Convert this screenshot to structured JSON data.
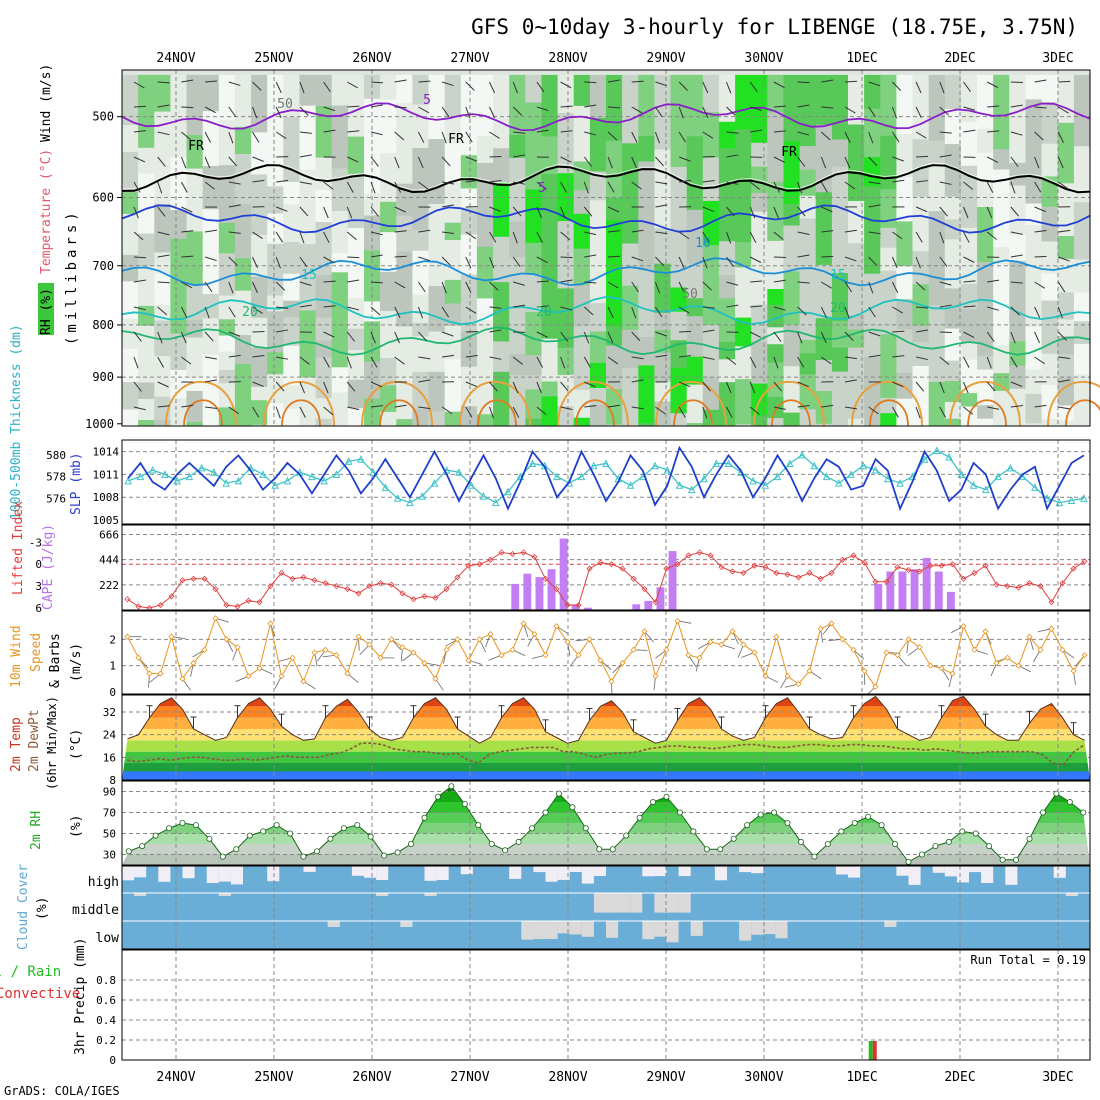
{
  "title": "GFS 0~10day 3-hourly for LIBENGE (18.75E, 3.75N)",
  "credit": "GrADS: COLA/IGES",
  "days": [
    "24NOV",
    "25NOV",
    "26NOV",
    "27NOV",
    "28NOV",
    "29NOV",
    "30NOV",
    "1DEC",
    "2DEC",
    "3DEC"
  ],
  "chart_data": [
    {
      "type": "heatmap",
      "panel": "upper-air",
      "ylabel_parts": {
        "rh": "RH (%)",
        "temp": "Temperature (°C)",
        "wind": "Wind (m/s)",
        "units": "(millibars)"
      },
      "y_ticks": [
        500,
        600,
        700,
        800,
        900,
        1000
      ],
      "ylim": [
        450,
        1005
      ],
      "y_scale": "log-pressure",
      "contour_labels": [
        "5",
        "FR",
        "FR",
        "FR",
        "5",
        "10",
        "15",
        "15",
        "20",
        "20",
        "20",
        "50",
        "50"
      ],
      "isotherms": [
        {
          "label": "5",
          "color": "#8a1fc9",
          "p": 500
        },
        {
          "label": "FR",
          "color": "#000000",
          "p": 575
        },
        {
          "label": "5",
          "color": "#1f3fd6",
          "p": 630
        },
        {
          "label": "10",
          "color": "#1b8ed8",
          "p": 710
        },
        {
          "label": "15",
          "color": "#1fc2c0",
          "p": 775
        },
        {
          "label": "20",
          "color": "#20b872",
          "p": 830
        }
      ]
    },
    {
      "type": "line",
      "panel": "thickness-slp",
      "ylabel_left": "1000-500mb Thickness (dm)",
      "ylabel_right": "SLP (mb)",
      "left_ticks": [
        "580",
        "578",
        "576"
      ],
      "right_ticks": [
        "1014",
        "1011",
        "1008",
        "1005"
      ],
      "series": [
        {
          "name": "SLP (mb)",
          "color": "#1f3fc9",
          "values": [
            1010.5,
            1012.5,
            1010.0,
            1009.0,
            1011.0,
            1012.5,
            1011.0,
            1009.5,
            1012.0,
            1013.5,
            1011.5,
            1009.0,
            1010.5,
            1012.5,
            1011.0,
            1008.5,
            1011.0,
            1013.5,
            1011.5,
            1008.5,
            1010.5,
            1013.0,
            1010.5,
            1008.0,
            1011.0,
            1014.0,
            1011.0,
            1007.5,
            1010.5,
            1013.5,
            1010.5,
            1006.5,
            1010.0,
            1014.0,
            1012.0,
            1008.0,
            1010.0,
            1014.0,
            1011.0,
            1007.5,
            1010.0,
            1013.5,
            1011.5,
            1007.0,
            1009.5,
            1014.5,
            1012.0,
            1008.0,
            1011.0,
            1013.5,
            1011.5,
            1008.0,
            1010.5,
            1013.5,
            1011.0,
            1007.5,
            1010.5,
            1013.0,
            1012.0,
            1009.0,
            1009.5,
            1013.0,
            1011.5,
            1006.5,
            1010.0,
            1014.0,
            1011.5,
            1007.5,
            1009.0,
            1012.5,
            1011.0,
            1006.5,
            1009.0,
            1011.0,
            1012.0,
            1006.5,
            1009.5,
            1012.5,
            1013.5
          ]
        },
        {
          "name": "Thickness (dm)",
          "color": "#3fc3c9",
          "values": [
            577.6,
            578.0,
            578.6,
            578.2,
            577.6,
            578.0,
            578.8,
            578.4,
            577.4,
            577.6,
            578.8,
            578.2,
            577.2,
            577.6,
            578.4,
            578.0,
            577.6,
            578.2,
            579.4,
            579.6,
            578.4,
            577.0,
            576.0,
            575.6,
            576.2,
            577.4,
            578.6,
            578.4,
            577.2,
            576.2,
            575.6,
            576.6,
            578.0,
            579.2,
            579.0,
            578.0,
            577.4,
            578.0,
            579.0,
            579.2,
            577.8,
            577.2,
            578.0,
            579.0,
            578.6,
            577.2,
            576.8,
            577.8,
            579.2,
            579.2,
            578.4,
            577.6,
            577.2,
            578.0,
            579.2,
            580.0,
            579.0,
            578.0,
            577.4,
            578.2,
            579.0,
            578.6,
            577.8,
            577.4,
            578.0,
            579.6,
            580.4,
            579.8,
            578.2,
            577.2,
            576.8,
            578.0,
            578.8,
            578.0,
            577.0,
            576.0,
            575.6,
            575.8,
            576.0
          ]
        }
      ]
    },
    {
      "type": "bar",
      "panel": "cape-li",
      "ylabel_left": "Lifted Index",
      "ylabel_right": "CAPE (J/kg)",
      "li_ticks": [
        "-3",
        "0",
        "3",
        "6"
      ],
      "cape_ticks": [
        "666",
        "444",
        "222"
      ],
      "series": [
        {
          "name": "CAPE (J/kg)",
          "color": "#c27ef2",
          "values": [
            0,
            0,
            0,
            0,
            0,
            0,
            0,
            0,
            0,
            0,
            0,
            0,
            0,
            0,
            0,
            0,
            0,
            0,
            0,
            0,
            0,
            0,
            0,
            0,
            0,
            0,
            0,
            0,
            0,
            0,
            0,
            0,
            230,
            320,
            290,
            360,
            630,
            50,
            20,
            0,
            0,
            0,
            50,
            80,
            200,
            520,
            0,
            0,
            0,
            0,
            0,
            0,
            0,
            0,
            0,
            0,
            0,
            0,
            0,
            0,
            0,
            0,
            230,
            340,
            340,
            360,
            460,
            340,
            160,
            0,
            0,
            0,
            0,
            0,
            0,
            0,
            0,
            0,
            0,
            0
          ]
        },
        {
          "name": "Lifted Index",
          "color": "#e04040",
          "values": [
            4.8,
            5.8,
            6.0,
            5.6,
            4.4,
            2.2,
            2.0,
            2.0,
            3.4,
            5.6,
            5.8,
            5.0,
            5.2,
            3.0,
            1.2,
            2.0,
            1.8,
            2.2,
            2.6,
            3.0,
            3.4,
            4.0,
            3.0,
            2.6,
            2.8,
            4.0,
            4.8,
            4.4,
            4.6,
            3.4,
            1.8,
            0.2,
            0.0,
            -0.6,
            -1.6,
            -1.4,
            -1.6,
            -1.0,
            2.0,
            3.4,
            5.6,
            5.6,
            0.6,
            -0.2,
            0.0,
            0.6,
            2.0,
            3.4,
            5.2,
            0.6,
            0.0,
            -1.2,
            -1.6,
            -1.2,
            0.4,
            1.0,
            1.2,
            0.2,
            0.4,
            1.2,
            1.4,
            1.8,
            1.2,
            2.0,
            1.2,
            -0.6,
            -1.2,
            -0.2,
            2.4,
            2.4,
            0.4,
            0.8,
            1.0,
            0.2,
            0.2,
            0.0,
            2.0,
            1.2,
            0.2,
            2.8,
            3.0,
            3.2,
            2.6,
            3.0,
            5.2,
            2.6,
            0.6,
            -0.4
          ]
        }
      ]
    },
    {
      "type": "line",
      "panel": "wind10m",
      "ylabel_parts": {
        "title": "10m Wind",
        "speed": "Speed",
        "barbs": "& Barbs",
        "units": "(m/s)"
      },
      "y_ticks": [
        "2",
        "1",
        "0"
      ],
      "series": [
        {
          "name": "Speed (m/s)",
          "color": "#e8941f",
          "values": [
            2.1,
            1.3,
            0.7,
            0.7,
            2.1,
            0.5,
            1.1,
            1.6,
            2.8,
            2.0,
            1.7,
            0.6,
            0.9,
            2.6,
            0.6,
            1.3,
            0.4,
            1.5,
            1.6,
            1.4,
            0.7,
            2.1,
            1.8,
            1.3,
            2.0,
            1.7,
            1.5,
            1.1,
            0.5,
            1.6,
            2.0,
            1.2,
            2.0,
            2.2,
            1.4,
            1.6,
            2.6,
            2.2,
            1.4,
            2.5,
            1.9,
            1.4,
            2.0,
            1.2,
            0.4,
            1.1,
            1.6,
            2.3,
            0.6,
            1.6,
            2.7,
            1.4,
            1.3,
            1.9,
            1.8,
            2.3,
            1.8,
            1.5,
            0.6,
            2.1,
            0.6,
            0.3,
            0.8,
            2.4,
            2.6,
            2.0,
            1.6,
            0.8,
            0.2,
            1.5,
            1.4,
            2.0,
            1.7,
            1.0,
            0.9,
            0.7,
            2.5,
            1.6,
            2.3,
            1.1,
            1.3,
            1.0,
            2.1,
            1.6,
            2.4,
            1.6,
            0.8,
            1.4
          ]
        }
      ]
    },
    {
      "type": "area",
      "panel": "temp-dewpt",
      "ylabel_parts": {
        "a": "2m Temp",
        "b": "2m DewPt",
        "c": "(6hr Min/Max)",
        "units": "(°C)"
      },
      "y_ticks": [
        "32",
        "24",
        "16",
        "8"
      ],
      "series": [
        {
          "name": "2m Temp",
          "color": "#cc3322",
          "values": [
            22.5,
            24,
            30,
            35,
            37,
            33,
            26,
            24,
            22,
            23,
            30,
            35,
            37,
            33,
            27,
            24,
            22,
            22.5,
            30,
            34,
            36.5,
            32,
            26,
            23,
            22,
            23,
            30,
            35,
            37,
            33,
            26,
            23.5,
            21,
            23,
            30,
            35,
            37,
            33,
            25,
            23,
            21,
            22,
            29,
            34,
            36,
            32,
            25,
            23,
            21,
            22,
            29,
            35,
            37,
            33,
            26,
            23.5,
            22,
            23,
            30,
            35,
            37,
            32,
            26,
            24,
            22.5,
            23,
            30,
            35,
            37.5,
            33,
            26,
            24,
            22,
            23,
            30,
            36,
            37.5,
            33,
            27,
            24,
            22,
            22,
            28,
            33,
            35,
            30,
            24,
            22
          ]
        },
        {
          "name": "2m DewPt",
          "color": "#8a5a3a",
          "values": [
            15,
            14.5,
            15,
            15.5,
            15,
            15.5,
            16,
            16,
            15.5,
            15,
            15,
            15.5,
            15,
            15.5,
            16,
            16.5,
            16,
            16,
            16,
            17,
            17.5,
            19,
            21,
            21,
            20.5,
            19,
            18.5,
            18,
            18,
            17.5,
            17,
            17.5,
            15,
            14,
            17,
            18,
            18.5,
            19,
            19.5,
            19.5,
            19.5,
            18,
            18,
            17,
            16,
            17,
            17.5,
            17.5,
            18,
            19,
            19.5,
            20,
            20,
            19.5,
            19.5,
            19,
            19.5,
            20,
            20.5,
            20.5,
            20,
            19.5,
            19.5,
            20,
            20.5,
            20.5,
            20,
            20,
            20.5,
            20.5,
            20,
            20,
            19.5,
            19,
            19,
            18.5,
            19,
            18.5,
            18,
            17.5,
            17.5,
            18,
            18,
            18,
            18,
            18,
            17,
            14,
            13.5,
            18,
            20.5
          ]
        }
      ]
    },
    {
      "type": "area",
      "panel": "rh2m",
      "ylabel": "2m RH",
      "units": "(%)",
      "y_ticks": [
        "90",
        "70",
        "50",
        "30"
      ],
      "series": [
        {
          "name": "2m RH",
          "color": "#22bb22",
          "values": [
            33,
            38,
            48,
            55,
            60,
            58,
            45,
            28,
            35,
            48,
            52,
            58,
            50,
            28,
            33,
            45,
            55,
            58,
            47,
            29,
            32,
            40,
            65,
            85,
            95,
            78,
            58,
            40,
            34,
            42,
            55,
            70,
            88,
            75,
            55,
            35,
            35,
            48,
            65,
            80,
            85,
            70,
            52,
            35,
            35,
            45,
            58,
            68,
            70,
            60,
            42,
            28,
            40,
            52,
            60,
            66,
            58,
            40,
            23,
            30,
            38,
            42,
            52,
            50,
            38,
            25,
            25,
            45,
            70,
            88,
            80,
            70
          ]
        }
      ]
    },
    {
      "type": "heatmap",
      "panel": "cloud-cover",
      "ylabel": "Cloud Cover",
      "units": "(%)",
      "rows": [
        "high",
        "middle",
        "low"
      ]
    },
    {
      "type": "bar",
      "panel": "precip",
      "ylabel_parts": {
        "a": "Total / Rain",
        "b": "Convective",
        "c": "3hr Precip (mm)"
      },
      "y_ticks": [
        "0.8",
        "0.6",
        "0.4",
        "0.2",
        "0"
      ],
      "ylim": [
        0,
        1.0
      ],
      "run_total": "Run Total = 0.19",
      "series": [
        {
          "name": "Total",
          "color": "#22bb22",
          "values": [
            0.19
          ],
          "x_day": 7.13
        },
        {
          "name": "Convective",
          "color": "#e03030",
          "values": [
            0.19
          ],
          "x_day": 7.13
        }
      ]
    }
  ]
}
